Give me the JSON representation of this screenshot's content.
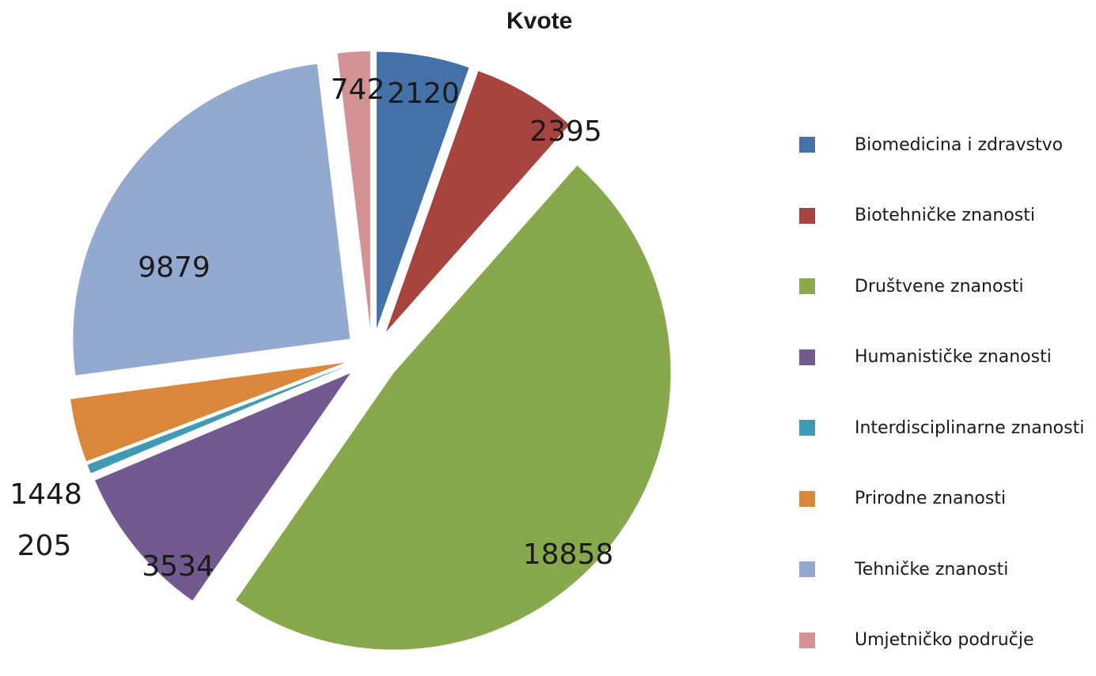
{
  "chart_data": {
    "type": "pie",
    "title": "Kvote",
    "exploded": true,
    "legend_position": "right",
    "slices": [
      {
        "name": "Biomedicina i zdravstvo",
        "value": 2120,
        "color": "#4472A8"
      },
      {
        "name": "Biotehničke znanosti",
        "value": 2395,
        "color": "#A84440"
      },
      {
        "name": "Društvene znanosti",
        "value": 18858,
        "color": "#88A84C"
      },
      {
        "name": "Humanističke znanosti",
        "value": 3534,
        "color": "#72598F"
      },
      {
        "name": "Interdisciplinarne znanosti",
        "value": 205,
        "color": "#3F9BB3"
      },
      {
        "name": "Prirodne znanosti",
        "value": 1448,
        "color": "#DA863B"
      },
      {
        "name": "Tehničke znanosti",
        "value": 9879,
        "color": "#93A9CF"
      },
      {
        "name": "Umjetničko područje",
        "value": 742,
        "color": "#D49294"
      }
    ]
  }
}
